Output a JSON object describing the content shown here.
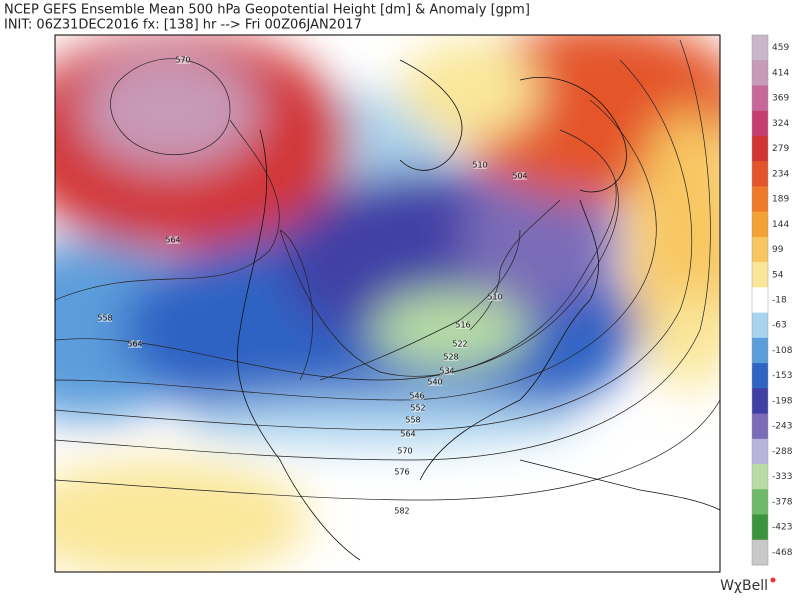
{
  "header": {
    "title": "NCEP GEFS Ensemble Mean 500 hPa Geopotential Height [dm] & Anomaly [gpm]",
    "init": "INIT: 06Z31DEC2016 fx: [138] hr --> Fri 00Z06JAN2017"
  },
  "colorbar": {
    "ticks": [
      459,
      414,
      369,
      324,
      279,
      234,
      189,
      144,
      99,
      54,
      -18,
      -63,
      -108,
      -153,
      -198,
      -243,
      -288,
      -333,
      -378,
      -423,
      -468
    ],
    "colors": [
      "#c9b7c9",
      "#c79ab8",
      "#c7679a",
      "#c73f6f",
      "#d23434",
      "#e4542a",
      "#ef7b2a",
      "#f4a234",
      "#f8c762",
      "#fae79a",
      "#ffffff",
      "#a9d3ee",
      "#5c9ddb",
      "#2e64c4",
      "#3f3fa6",
      "#7a6cb8",
      "#b9b4dc",
      "#b7dca4",
      "#6cb96a",
      "#3d943e",
      "#c8c8c8"
    ]
  },
  "contours": [
    570,
    564,
    558,
    564,
    510,
    504,
    510,
    516,
    522,
    528,
    534,
    540,
    546,
    552,
    558,
    564,
    570,
    576,
    582
  ],
  "brand": "WχBell"
}
